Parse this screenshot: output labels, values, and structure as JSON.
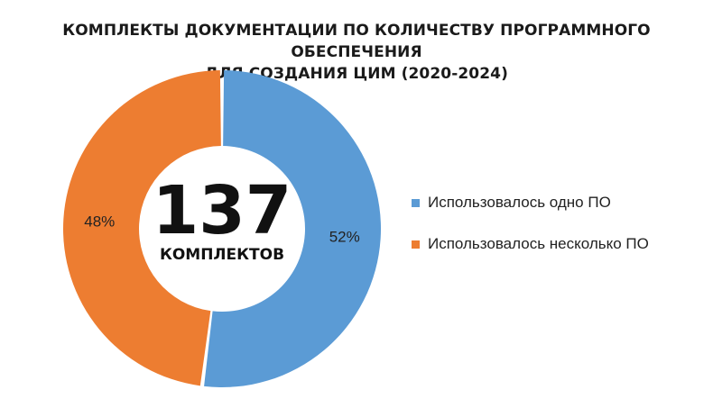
{
  "chart_data": {
    "type": "pie",
    "variant": "donut",
    "title": "КОМПЛЕКТЫ ДОКУМЕНТАЦИИ ПО КОЛИЧЕСТВУ ПРОГРАММНОГО ОБЕСПЕЧЕНИЯ ДЛЯ СОЗДАНИЯ ЦИМ  (2020-2024)",
    "title_lines": [
      "КОМПЛЕКТЫ ДОКУМЕНТАЦИИ ПО КОЛИЧЕСТВУ ПРОГРАММНОГО ОБЕСПЕЧЕНИЯ",
      "ДЛЯ СОЗДАНИЯ ЦИМ  (2020-2024)"
    ],
    "center_value": "137",
    "center_label": "КОМПЛЕКТОВ",
    "legend_position": "right",
    "slices": [
      {
        "name": "Использовалось одно ПО",
        "value": 52,
        "label": "52%",
        "color": "#5b9bd5"
      },
      {
        "name": "Использовалось несколько ПО",
        "value": 48,
        "label": "48%",
        "color": "#ed7d31"
      }
    ]
  }
}
